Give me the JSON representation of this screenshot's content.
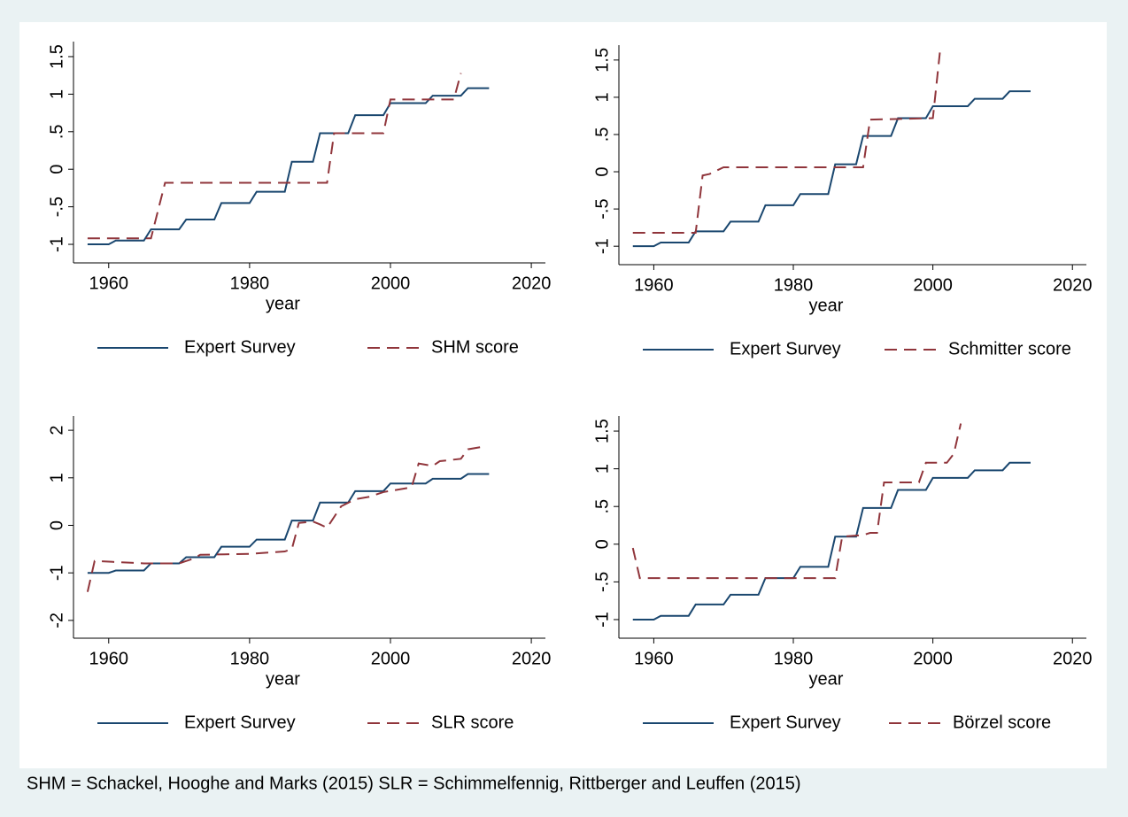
{
  "chart_data": [
    {
      "type": "line",
      "xlabel": "year",
      "xlim": [
        1955,
        2022
      ],
      "xticks": [
        1960,
        1980,
        2000,
        2020
      ],
      "ylim": [
        -1.2,
        1.7
      ],
      "yticks": [
        {
          "value": -1,
          "label": "-1"
        },
        {
          "value": -0.5,
          "label": "-.5"
        },
        0,
        {
          "value": 0.5,
          "label": ".5"
        },
        1,
        1.5
      ],
      "series": [
        {
          "name": "Expert Survey",
          "color": "#1a476f",
          "style": "solid",
          "x": [
            1957,
            1960,
            1961,
            1965,
            1966,
            1970,
            1971,
            1975,
            1976,
            1980,
            1981,
            1985,
            1986,
            1989,
            1990,
            1994,
            1995,
            1999,
            2000,
            2005,
            2006,
            2010,
            2011,
            2014
          ],
          "values": [
            -1,
            -1,
            -0.95,
            -0.95,
            -0.8,
            -0.8,
            -0.67,
            -0.67,
            -0.45,
            -0.45,
            -0.3,
            -0.3,
            0.1,
            0.1,
            0.48,
            0.48,
            0.72,
            0.72,
            0.88,
            0.88,
            0.98,
            0.98,
            1.08,
            1.08
          ]
        },
        {
          "name": "SHM score",
          "color": "#90353b",
          "style": "dashed",
          "x": [
            1957,
            1966,
            1968,
            1991,
            1992,
            1999,
            2000,
            2009,
            2010
          ],
          "values": [
            -0.92,
            -0.92,
            -0.18,
            -0.18,
            0.48,
            0.48,
            0.93,
            0.93,
            1.28
          ]
        }
      ]
    },
    {
      "type": "line",
      "xlabel": "year",
      "xlim": [
        1955,
        2022
      ],
      "xticks": [
        1960,
        1980,
        2000,
        2020
      ],
      "ylim": [
        -1.2,
        1.7
      ],
      "yticks": [
        {
          "value": -1,
          "label": "-1"
        },
        {
          "value": -0.5,
          "label": "-.5"
        },
        0,
        {
          "value": 0.5,
          "label": ".5"
        },
        1,
        1.5
      ],
      "series": [
        {
          "name": "Expert Survey",
          "color": "#1a476f",
          "style": "solid",
          "x": [
            1957,
            1960,
            1961,
            1965,
            1966,
            1970,
            1971,
            1975,
            1976,
            1980,
            1981,
            1985,
            1986,
            1989,
            1990,
            1994,
            1995,
            1999,
            2000,
            2005,
            2006,
            2010,
            2011,
            2014
          ],
          "values": [
            -1,
            -1,
            -0.95,
            -0.95,
            -0.8,
            -0.8,
            -0.67,
            -0.67,
            -0.45,
            -0.45,
            -0.3,
            -0.3,
            0.1,
            0.1,
            0.48,
            0.48,
            0.72,
            0.72,
            0.88,
            0.88,
            0.98,
            0.98,
            1.08,
            1.08
          ]
        },
        {
          "name": "Schmitter score",
          "color": "#90353b",
          "style": "dashed",
          "x": [
            1957,
            1966,
            1967,
            1968,
            1970,
            1990,
            1991,
            2000,
            2001
          ],
          "values": [
            -0.82,
            -0.82,
            -0.05,
            -0.03,
            0.06,
            0.06,
            0.7,
            0.72,
            1.6
          ]
        }
      ]
    },
    {
      "type": "line",
      "xlabel": "year",
      "xlim": [
        1955,
        2022
      ],
      "xticks": [
        1960,
        1980,
        2000,
        2020
      ],
      "ylim": [
        -2.3,
        2.3
      ],
      "yticks": [
        -2,
        -1,
        0,
        1,
        2
      ],
      "series": [
        {
          "name": "Expert Survey",
          "color": "#1a476f",
          "style": "solid",
          "x": [
            1957,
            1960,
            1961,
            1965,
            1966,
            1970,
            1971,
            1975,
            1976,
            1980,
            1981,
            1985,
            1986,
            1989,
            1990,
            1994,
            1995,
            1999,
            2000,
            2005,
            2006,
            2010,
            2011,
            2014
          ],
          "values": [
            -1,
            -1,
            -0.95,
            -0.95,
            -0.8,
            -0.8,
            -0.67,
            -0.67,
            -0.45,
            -0.45,
            -0.3,
            -0.3,
            0.1,
            0.1,
            0.48,
            0.48,
            0.72,
            0.72,
            0.88,
            0.88,
            0.98,
            0.98,
            1.08,
            1.08
          ]
        },
        {
          "name": "SLR score",
          "color": "#90353b",
          "style": "dashed",
          "x": [
            1957,
            1958,
            1965,
            1970,
            1972,
            1973,
            1980,
            1985,
            1986,
            1987,
            1989,
            1990,
            1991,
            1993,
            1995,
            1997,
            1999,
            2001,
            2003,
            2004,
            2006,
            2007,
            2010,
            2011,
            2013
          ],
          "values": [
            -1.4,
            -0.75,
            -0.8,
            -0.8,
            -0.7,
            -0.62,
            -0.6,
            -0.55,
            -0.5,
            0.05,
            0.08,
            0.02,
            -0.05,
            0.4,
            0.55,
            0.6,
            0.7,
            0.75,
            0.8,
            1.3,
            1.25,
            1.35,
            1.4,
            1.6,
            1.65
          ]
        }
      ]
    },
    {
      "type": "line",
      "xlabel": "year",
      "xlim": [
        1955,
        2022
      ],
      "xticks": [
        1960,
        1980,
        2000,
        2020
      ],
      "ylim": [
        -1.2,
        1.7
      ],
      "yticks": [
        {
          "value": -1,
          "label": "-1"
        },
        {
          "value": -0.5,
          "label": "-.5"
        },
        0,
        {
          "value": 0.5,
          "label": ".5"
        },
        1,
        1.5
      ],
      "series": [
        {
          "name": "Expert Survey",
          "color": "#1a476f",
          "style": "solid",
          "x": [
            1957,
            1960,
            1961,
            1965,
            1966,
            1970,
            1971,
            1975,
            1976,
            1980,
            1981,
            1985,
            1986,
            1989,
            1990,
            1994,
            1995,
            1999,
            2000,
            2005,
            2006,
            2010,
            2011,
            2014
          ],
          "values": [
            -1,
            -1,
            -0.95,
            -0.95,
            -0.8,
            -0.8,
            -0.67,
            -0.67,
            -0.45,
            -0.45,
            -0.3,
            -0.3,
            0.1,
            0.1,
            0.48,
            0.48,
            0.72,
            0.72,
            0.88,
            0.88,
            0.98,
            0.98,
            1.08,
            1.08
          ]
        },
        {
          "name": "Börzel score",
          "color": "#90353b",
          "style": "dashed",
          "x": [
            1957,
            1958,
            1986,
            1987,
            1990,
            1991,
            1992,
            1993,
            1998,
            1999,
            2002,
            2003,
            2004
          ],
          "values": [
            -0.05,
            -0.45,
            -0.45,
            0.1,
            0.12,
            0.15,
            0.15,
            0.82,
            0.82,
            1.08,
            1.08,
            1.2,
            1.6
          ]
        }
      ]
    }
  ],
  "footnote": "SHM = Schackel, Hooghe and Marks (2015) SLR = Schimmelfennig, Rittberger and Leuffen (2015)"
}
